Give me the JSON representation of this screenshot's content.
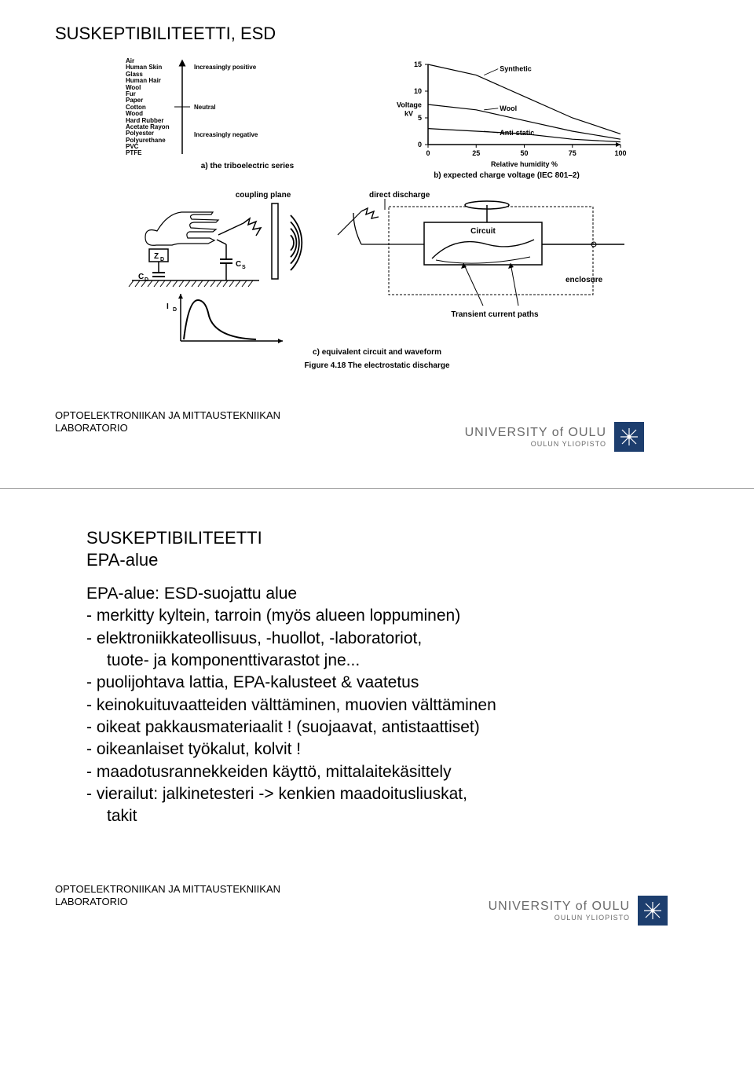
{
  "slide1": {
    "title": "SUSKEPTIBILITEETTI, ESD",
    "tribo": {
      "items": [
        "Air",
        "Human Skin",
        "Glass",
        "Human Hair",
        "Wool",
        "Fur",
        "Paper",
        "Cotton",
        "Wood",
        "Hard Rubber",
        "Acetate Rayon",
        "Polyester",
        "Polyurethane",
        "PVC",
        "PTFE"
      ],
      "label_top": "Increasingly positive",
      "label_mid": "Neutral",
      "label_bot": "Increasingly negative",
      "caption": "a) the triboelectric series"
    },
    "chart": {
      "type": "line",
      "xlabel": "Relative humidity %",
      "ylabel": "Voltage kV",
      "xlim": [
        0,
        100
      ],
      "ylim": [
        0,
        15
      ],
      "xticks": [
        0,
        25,
        50,
        75,
        100
      ],
      "yticks": [
        0,
        5,
        10,
        15
      ],
      "series": [
        {
          "label": "Synthetic",
          "color": "#000000",
          "points": [
            [
              0,
              15
            ],
            [
              25,
              13
            ],
            [
              50,
              9
            ],
            [
              75,
              5
            ],
            [
              100,
              2
            ]
          ]
        },
        {
          "label": "Wool",
          "color": "#000000",
          "points": [
            [
              0,
              7.5
            ],
            [
              25,
              6.5
            ],
            [
              50,
              4.5
            ],
            [
              75,
              2.5
            ],
            [
              100,
              1
            ]
          ]
        },
        {
          "label": "Anti-static",
          "color": "#000000",
          "points": [
            [
              0,
              3
            ],
            [
              25,
              2.5
            ],
            [
              50,
              2
            ],
            [
              75,
              1
            ],
            [
              100,
              0.5
            ]
          ]
        }
      ],
      "caption": "b) expected charge voltage (IEC 801–2)",
      "label_fontsize": 9,
      "line_width": 1.2,
      "background_color": "#ffffff"
    },
    "circuit": {
      "labels": {
        "coupling_plane": "coupling plane",
        "direct_discharge": "direct discharge",
        "circuit": "Circuit",
        "enclosure": "enclosure",
        "transient": "Transient current paths",
        "zd": "Z",
        "zd_sub": "D",
        "cd": "C",
        "cd_sub": "D",
        "cs": "C",
        "cs_sub": "S",
        "id": "I",
        "id_sub": "D"
      },
      "caption": "c) equivalent circuit and waveform"
    },
    "main_caption": "Figure 4.18  The electrostatic discharge",
    "footer": {
      "line1": "OPTOELEKTRONIIKAN JA MITTAUSTEKNIIKAN",
      "line2": "LABORATORIO",
      "uni_big": "UNIVERSITY of OULU",
      "uni_small": "OULUN YLIOPISTO"
    }
  },
  "slide2": {
    "title_line1": "SUSKEPTIBILITEETTI",
    "title_line2": "EPA-alue",
    "lines": [
      "EPA-alue: ESD-suojattu alue",
      "- merkitty kyltein, tarroin (myös alueen loppuminen)",
      "- elektroniikkateollisuus, -huollot, -laboratoriot,",
      "  tuote- ja komponenttivarastot jne...",
      "- puolijohtava lattia, EPA-kalusteet & vaatetus",
      "- keinokuituvaatteiden välttäminen, muovien välttäminen",
      "- oikeat pakkausmateriaalit ! (suojaavat, antistaattiset)",
      "- oikeanlaiset työkalut, kolvit !",
      "- maadotusrannekkeiden käyttö, mittalaitekäsittely",
      "- vierailut: jalkinetesteri -> kenkien maadoitusliuskat,",
      "  takit"
    ],
    "footer": {
      "line1": "OPTOELEKTRONIIKAN JA MITTAUSTEKNIIKAN",
      "line2": "LABORATORIO",
      "uni_big": "UNIVERSITY of OULU",
      "uni_small": "OULUN YLIOPISTO"
    }
  }
}
